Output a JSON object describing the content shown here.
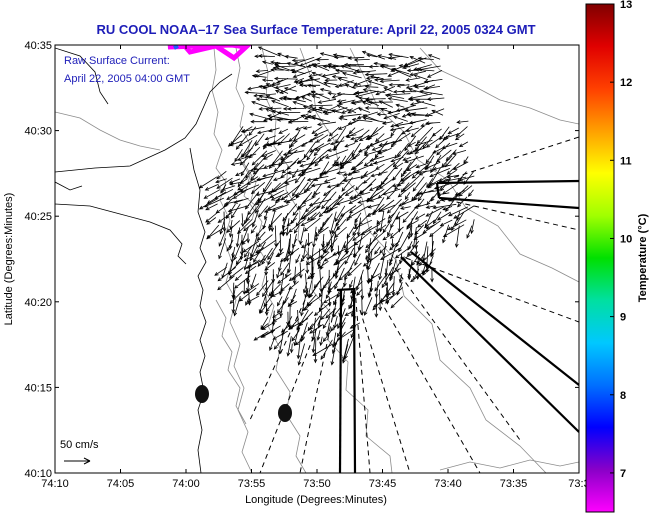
{
  "chart_data": {
    "type": "vector-field-map",
    "title": "RU COOL  NOAA–17  Sea Surface Temperature:  April 22, 2005 0324 GMT",
    "xlabel": "Longitude (Degrees:Minutes)",
    "ylabel": "Latitude (Degrees:Minutes)",
    "x_ticks": [
      "74:10",
      "74:05",
      "74:00",
      "73:55",
      "73:50",
      "73:45",
      "73:40",
      "73:35",
      "73:3"
    ],
    "y_ticks": [
      "40:35",
      "40:30",
      "40:25",
      "40:20",
      "40:15",
      "40:10"
    ],
    "xlim_minutes_west": [
      10,
      30
    ],
    "ylim_minutes_north": [
      10,
      35
    ],
    "annotation_line1": "Raw Surface Current:",
    "annotation_line2": "April 22, 2005 04:00 GMT",
    "scale_label": "50 cm/s",
    "colorbar": {
      "label": "Temperature (°C)",
      "ticks": [
        "13",
        "12",
        "11",
        "10",
        "9",
        "8",
        "7"
      ],
      "range": [
        6.5,
        13
      ],
      "colors": [
        "#ff00ff",
        "#8a00c8",
        "#0000ff",
        "#0070ff",
        "#00c8ff",
        "#00e0a0",
        "#00e000",
        "#a0ff00",
        "#ffff00",
        "#ffa000",
        "#ff4000",
        "#e00000",
        "#800000"
      ]
    },
    "colors": {
      "arrow": "#000000",
      "coast": "#000000",
      "bathy": "#8c8c8c",
      "title": "#1d1db8",
      "sst_patch": "#ff00ff"
    }
  }
}
